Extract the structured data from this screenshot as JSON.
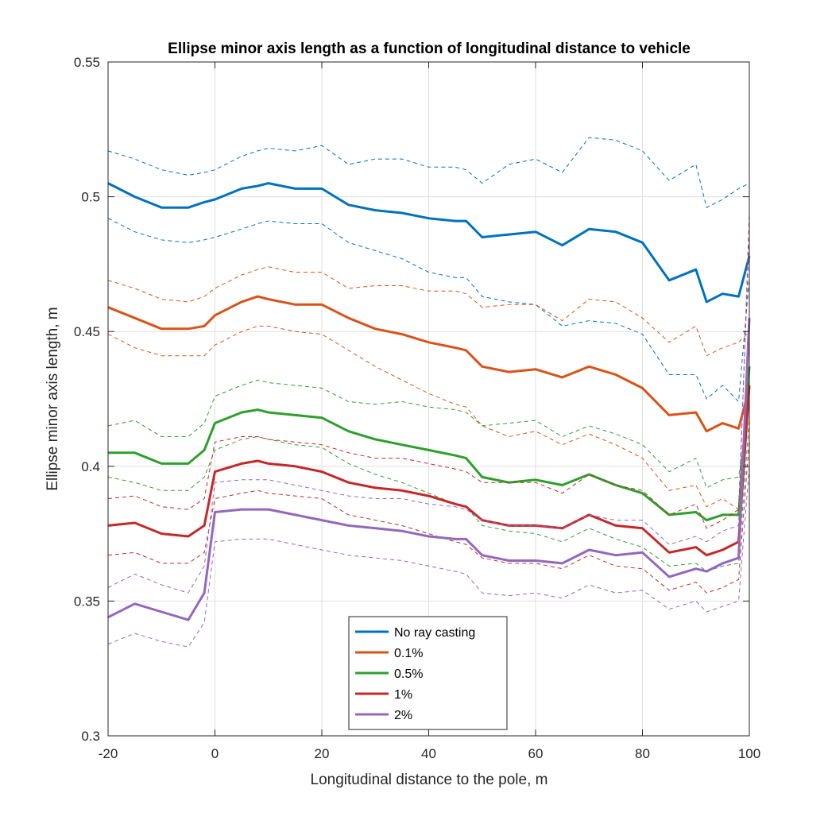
{
  "chart_data": {
    "type": "line",
    "title": "Ellipse minor axis length as a function of longitudinal distance to vehicle",
    "xlabel": "Longitudinal distance to the pole, m",
    "ylabel": "Ellipse minor axis length, m",
    "xlim": [
      -20,
      100
    ],
    "ylim": [
      0.3,
      0.55
    ],
    "xticks": [
      "-20",
      "0",
      "20",
      "40",
      "60",
      "80",
      "100"
    ],
    "yticks": [
      "0.3",
      "0.35",
      "0.4",
      "0.45",
      "0.5",
      "0.55"
    ],
    "grid": true,
    "legend_position": "bottom-center",
    "x": [
      -20,
      -15,
      -10,
      -5,
      -2,
      0,
      5,
      8,
      10,
      15,
      20,
      25,
      30,
      35,
      40,
      45,
      47,
      50,
      55,
      60,
      65,
      70,
      75,
      80,
      85,
      90,
      92,
      95,
      98,
      100
    ],
    "series": [
      {
        "name": "No ray casting",
        "color": "#0072BD",
        "values": [
          0.505,
          0.5,
          0.496,
          0.496,
          0.498,
          0.499,
          0.503,
          0.504,
          0.505,
          0.503,
          0.503,
          0.497,
          0.495,
          0.494,
          0.492,
          0.491,
          0.491,
          0.485,
          0.486,
          0.487,
          0.482,
          0.488,
          0.487,
          0.483,
          0.469,
          0.473,
          0.461,
          0.464,
          0.463,
          0.478
        ],
        "upper": [
          0.517,
          0.514,
          0.51,
          0.508,
          0.509,
          0.51,
          0.515,
          0.517,
          0.518,
          0.517,
          0.519,
          0.512,
          0.514,
          0.514,
          0.511,
          0.511,
          0.51,
          0.505,
          0.512,
          0.514,
          0.509,
          0.522,
          0.521,
          0.517,
          0.506,
          0.512,
          0.496,
          0.499,
          0.503,
          0.505
        ],
        "lower": [
          0.492,
          0.487,
          0.484,
          0.483,
          0.484,
          0.485,
          0.488,
          0.49,
          0.491,
          0.49,
          0.49,
          0.483,
          0.48,
          0.477,
          0.472,
          0.47,
          0.47,
          0.463,
          0.461,
          0.46,
          0.452,
          0.454,
          0.453,
          0.449,
          0.434,
          0.434,
          0.425,
          0.43,
          0.424,
          0.47
        ]
      },
      {
        "name": "0.1%",
        "color": "#D95319",
        "values": [
          0.459,
          0.455,
          0.451,
          0.451,
          0.452,
          0.456,
          0.461,
          0.463,
          0.462,
          0.46,
          0.46,
          0.455,
          0.451,
          0.449,
          0.446,
          0.444,
          0.443,
          0.437,
          0.435,
          0.436,
          0.433,
          0.437,
          0.434,
          0.429,
          0.419,
          0.42,
          0.413,
          0.416,
          0.414,
          0.429
        ],
        "upper": [
          0.469,
          0.466,
          0.462,
          0.461,
          0.463,
          0.466,
          0.471,
          0.473,
          0.474,
          0.472,
          0.472,
          0.466,
          0.467,
          0.467,
          0.465,
          0.465,
          0.464,
          0.459,
          0.46,
          0.46,
          0.454,
          0.462,
          0.461,
          0.455,
          0.446,
          0.452,
          0.441,
          0.444,
          0.446,
          0.45
        ],
        "lower": [
          0.449,
          0.444,
          0.441,
          0.441,
          0.441,
          0.445,
          0.45,
          0.452,
          0.452,
          0.45,
          0.449,
          0.443,
          0.437,
          0.432,
          0.427,
          0.423,
          0.422,
          0.415,
          0.411,
          0.413,
          0.408,
          0.412,
          0.408,
          0.403,
          0.391,
          0.393,
          0.385,
          0.388,
          0.384,
          0.435
        ]
      },
      {
        "name": "0.5%",
        "color": "#2CA02C",
        "values": [
          0.405,
          0.405,
          0.401,
          0.401,
          0.406,
          0.416,
          0.42,
          0.421,
          0.42,
          0.419,
          0.418,
          0.413,
          0.41,
          0.408,
          0.406,
          0.404,
          0.403,
          0.396,
          0.394,
          0.395,
          0.393,
          0.397,
          0.393,
          0.39,
          0.382,
          0.383,
          0.38,
          0.382,
          0.382,
          0.437
        ],
        "upper": [
          0.415,
          0.417,
          0.411,
          0.411,
          0.416,
          0.426,
          0.43,
          0.432,
          0.431,
          0.43,
          0.429,
          0.424,
          0.423,
          0.424,
          0.422,
          0.421,
          0.42,
          0.415,
          0.416,
          0.417,
          0.411,
          0.415,
          0.412,
          0.408,
          0.398,
          0.403,
          0.392,
          0.395,
          0.396,
          0.423
        ],
        "lower": [
          0.396,
          0.394,
          0.391,
          0.391,
          0.396,
          0.406,
          0.41,
          0.411,
          0.41,
          0.408,
          0.407,
          0.401,
          0.397,
          0.394,
          0.39,
          0.386,
          0.385,
          0.378,
          0.376,
          0.375,
          0.372,
          0.377,
          0.373,
          0.37,
          0.363,
          0.364,
          0.361,
          0.363,
          0.364,
          0.418
        ]
      },
      {
        "name": "1%",
        "color": "#C62828",
        "values": [
          0.378,
          0.379,
          0.375,
          0.374,
          0.378,
          0.398,
          0.401,
          0.402,
          0.401,
          0.4,
          0.398,
          0.394,
          0.392,
          0.391,
          0.389,
          0.386,
          0.385,
          0.38,
          0.378,
          0.378,
          0.377,
          0.382,
          0.378,
          0.377,
          0.368,
          0.37,
          0.367,
          0.369,
          0.372,
          0.43
        ],
        "upper": [
          0.388,
          0.389,
          0.385,
          0.384,
          0.388,
          0.409,
          0.411,
          0.411,
          0.41,
          0.409,
          0.408,
          0.405,
          0.403,
          0.403,
          0.401,
          0.399,
          0.398,
          0.394,
          0.394,
          0.394,
          0.39,
          0.397,
          0.393,
          0.391,
          0.382,
          0.386,
          0.377,
          0.38,
          0.384,
          0.487
        ],
        "lower": [
          0.367,
          0.368,
          0.364,
          0.364,
          0.368,
          0.388,
          0.39,
          0.391,
          0.39,
          0.389,
          0.388,
          0.382,
          0.38,
          0.378,
          0.375,
          0.372,
          0.371,
          0.366,
          0.364,
          0.364,
          0.362,
          0.367,
          0.363,
          0.362,
          0.354,
          0.357,
          0.353,
          0.355,
          0.358,
          0.41
        ]
      },
      {
        "name": "2%",
        "color": "#9467BD",
        "values": [
          0.344,
          0.349,
          0.346,
          0.343,
          0.353,
          0.383,
          0.384,
          0.384,
          0.384,
          0.382,
          0.38,
          0.378,
          0.377,
          0.376,
          0.374,
          0.373,
          0.373,
          0.367,
          0.365,
          0.365,
          0.364,
          0.369,
          0.367,
          0.368,
          0.359,
          0.362,
          0.361,
          0.364,
          0.366,
          0.455
        ],
        "upper": [
          0.355,
          0.36,
          0.356,
          0.353,
          0.363,
          0.394,
          0.395,
          0.395,
          0.395,
          0.393,
          0.391,
          0.389,
          0.388,
          0.388,
          0.386,
          0.385,
          0.384,
          0.38,
          0.378,
          0.378,
          0.377,
          0.382,
          0.38,
          0.38,
          0.371,
          0.374,
          0.372,
          0.376,
          0.378,
          0.495
        ],
        "lower": [
          0.334,
          0.338,
          0.335,
          0.333,
          0.342,
          0.372,
          0.373,
          0.373,
          0.373,
          0.371,
          0.369,
          0.367,
          0.366,
          0.365,
          0.363,
          0.361,
          0.36,
          0.353,
          0.352,
          0.353,
          0.351,
          0.356,
          0.353,
          0.354,
          0.347,
          0.35,
          0.346,
          0.348,
          0.35,
          0.4
        ]
      }
    ]
  }
}
